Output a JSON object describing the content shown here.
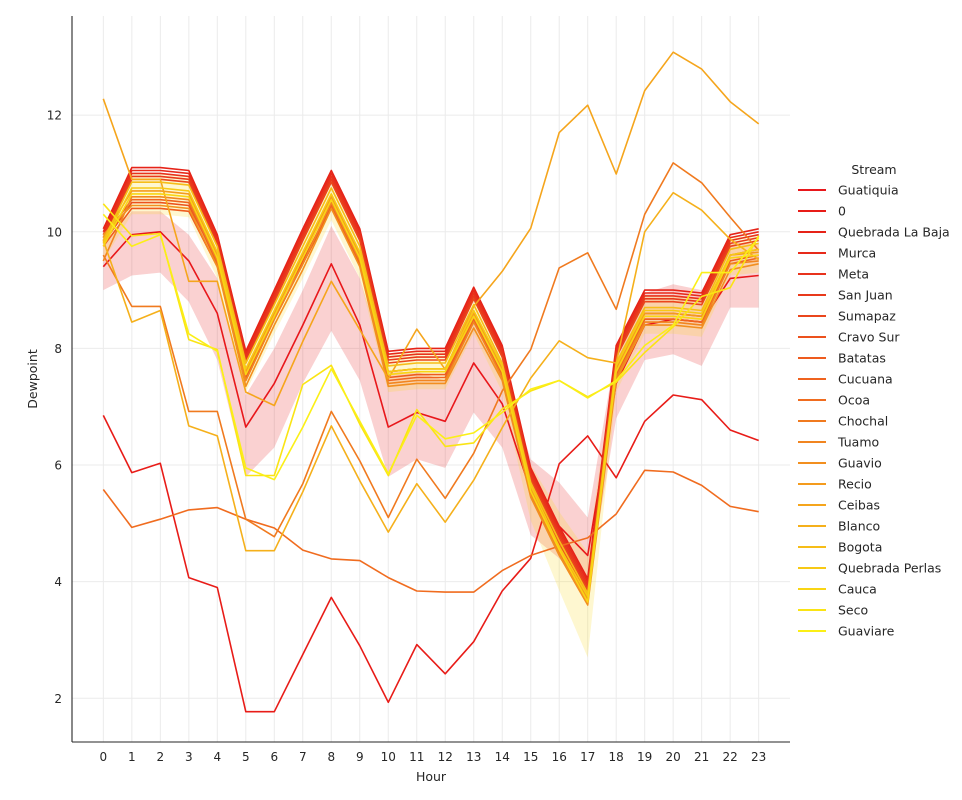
{
  "chart_data": {
    "type": "line",
    "xlabel": "Hour",
    "ylabel": "Dewpoint",
    "x": [
      0,
      1,
      2,
      3,
      4,
      5,
      6,
      7,
      8,
      9,
      10,
      11,
      12,
      13,
      14,
      15,
      16,
      17,
      18,
      19,
      20,
      21,
      22,
      23
    ],
    "x_ticks": [
      "0",
      "1",
      "2",
      "3",
      "4",
      "5",
      "6",
      "7",
      "8",
      "9",
      "10",
      "11",
      "12",
      "13",
      "14",
      "15",
      "16",
      "17",
      "18",
      "19",
      "20",
      "21",
      "22",
      "23"
    ],
    "y_ticks": [
      "2",
      "4",
      "6",
      "8",
      "10",
      "12"
    ],
    "xlim": [
      -1.1,
      24.1
    ],
    "ylim": [
      1.25,
      13.7
    ],
    "grid": true,
    "legend": {
      "title": "Stream",
      "placement": "right"
    },
    "series": [
      {
        "name": "Guatiquia",
        "color": "#e8171b",
        "values": [
          9.4,
          9.95,
          10.0,
          9.5,
          8.6,
          6.65,
          7.4,
          8.4,
          9.45,
          8.4,
          6.65,
          6.9,
          6.75,
          7.75,
          7.05,
          5.55,
          4.95,
          4.45,
          7.4,
          8.4,
          8.5,
          8.45,
          9.2,
          9.25
        ],
        "band": [
          [
            9.0,
            9.8
          ],
          [
            9.25,
            10.35
          ],
          [
            9.3,
            10.35
          ],
          [
            8.8,
            9.95
          ],
          [
            7.8,
            9.2
          ],
          [
            5.8,
            7.2
          ],
          [
            6.3,
            8.0
          ],
          [
            7.4,
            9.0
          ],
          [
            8.3,
            10.1
          ],
          [
            7.45,
            9.2
          ],
          [
            5.8,
            7.6
          ],
          [
            6.1,
            7.6
          ],
          [
            5.95,
            7.45
          ],
          [
            6.9,
            8.45
          ],
          [
            6.3,
            7.7
          ],
          [
            4.8,
            6.1
          ],
          [
            4.4,
            5.7
          ],
          [
            3.85,
            5.1
          ],
          [
            6.8,
            8.0
          ],
          [
            7.8,
            8.95
          ],
          [
            7.9,
            9.1
          ],
          [
            7.7,
            9.0
          ],
          [
            8.7,
            9.8
          ],
          [
            8.7,
            9.8
          ]
        ]
      },
      {
        "name": "0",
        "color": "#e81c18",
        "values": [
          6.85,
          5.87,
          6.03,
          4.07,
          3.9,
          1.77,
          1.77,
          2.75,
          3.73,
          2.9,
          1.93,
          2.92,
          2.42,
          2.97,
          3.84,
          4.4,
          6.02,
          6.5,
          5.78,
          6.75,
          7.2,
          7.12,
          6.6,
          6.42
        ]
      },
      {
        "name": "Quebrada La Baja",
        "color": "#e62318",
        "values": [
          10.05,
          11.1,
          11.1,
          11.05,
          9.95,
          7.95,
          9.0,
          10.05,
          11.05,
          10.05,
          7.95,
          8.0,
          8.0,
          9.05,
          8.05,
          5.95,
          4.95,
          4.05,
          8.05,
          9.0,
          9.0,
          8.95,
          9.95,
          10.05
        ]
      },
      {
        "name": "Murca",
        "color": "#e72a1a",
        "values": [
          10.0,
          11.05,
          11.05,
          11.0,
          9.9,
          7.9,
          8.95,
          10.0,
          11.0,
          10.0,
          7.9,
          7.95,
          7.95,
          9.0,
          8.0,
          5.9,
          4.9,
          4.0,
          8.0,
          8.95,
          8.95,
          8.9,
          9.9,
          10.0
        ]
      },
      {
        "name": "Meta",
        "color": "#e8321c",
        "values": [
          9.95,
          11.0,
          11.0,
          10.95,
          9.85,
          7.85,
          8.9,
          9.95,
          10.95,
          9.95,
          7.85,
          7.9,
          7.9,
          8.95,
          7.95,
          5.85,
          4.85,
          3.95,
          7.95,
          8.9,
          8.9,
          8.85,
          9.85,
          9.95
        ]
      },
      {
        "name": "San Juan",
        "color": "#e8391b",
        "values": [
          9.9,
          10.95,
          10.95,
          10.9,
          9.8,
          7.8,
          8.85,
          9.9,
          10.9,
          9.9,
          7.8,
          7.85,
          7.85,
          8.9,
          7.9,
          5.8,
          4.8,
          3.9,
          7.9,
          8.85,
          8.85,
          8.8,
          9.8,
          9.9
        ]
      },
      {
        "name": "Sumapaz",
        "color": "#ea461c",
        "values": [
          9.85,
          10.9,
          10.9,
          10.85,
          9.75,
          7.75,
          8.8,
          9.85,
          10.85,
          9.85,
          7.75,
          7.8,
          7.8,
          8.85,
          7.85,
          5.75,
          4.75,
          3.85,
          7.85,
          8.8,
          8.8,
          8.75,
          9.75,
          9.85
        ]
      },
      {
        "name": "Cravo Sur",
        "color": "#ec511d",
        "values": [
          9.8,
          10.5,
          10.5,
          10.45,
          9.5,
          7.6,
          8.6,
          9.5,
          10.45,
          9.5,
          7.6,
          7.65,
          7.65,
          8.6,
          7.7,
          5.65,
          4.65,
          3.8,
          7.7,
          8.6,
          8.6,
          8.55,
          9.6,
          9.7
        ]
      },
      {
        "name": "Batatas",
        "color": "#ee5b1e",
        "values": [
          9.75,
          10.4,
          10.4,
          10.35,
          9.4,
          7.5,
          8.5,
          9.45,
          10.4,
          9.45,
          7.5,
          7.55,
          7.55,
          8.5,
          7.6,
          5.6,
          4.6,
          3.75,
          7.6,
          8.5,
          8.5,
          8.45,
          9.5,
          9.6
        ]
      },
      {
        "name": "Cucuana",
        "color": "#ef631f",
        "values": [
          9.9,
          10.55,
          10.55,
          10.5,
          9.45,
          7.45,
          8.5,
          9.45,
          10.45,
          9.45,
          7.45,
          7.5,
          7.5,
          8.5,
          7.55,
          5.55,
          4.55,
          3.7,
          7.55,
          8.5,
          8.5,
          8.45,
          9.45,
          9.55
        ]
      },
      {
        "name": "Ocoa",
        "color": "#f06c1f",
        "values": [
          5.58,
          4.93,
          5.07,
          5.23,
          5.27,
          5.07,
          4.92,
          4.54,
          4.39,
          4.36,
          4.07,
          3.84,
          3.82,
          3.82,
          4.19,
          4.45,
          4.61,
          4.75,
          5.16,
          5.91,
          5.88,
          5.65,
          5.29,
          5.2
        ]
      },
      {
        "name": "Chochal",
        "color": "#f07a1f",
        "values": [
          9.6,
          8.72,
          8.72,
          6.92,
          6.92,
          5.07,
          4.77,
          5.68,
          6.92,
          6.07,
          5.1,
          6.1,
          5.43,
          6.2,
          7.27,
          7.98,
          9.38,
          9.64,
          8.67,
          10.3,
          11.18,
          10.84,
          10.25,
          9.68
        ]
      },
      {
        "name": "Tuamo",
        "color": "#f18520",
        "values": [
          9.5,
          10.6,
          10.6,
          10.55,
          9.5,
          7.45,
          8.5,
          9.45,
          10.5,
          9.5,
          7.4,
          7.45,
          7.45,
          8.45,
          7.5,
          5.5,
          4.5,
          3.65,
          7.5,
          8.45,
          8.45,
          8.4,
          9.45,
          9.5
        ]
      },
      {
        "name": "Guavio",
        "color": "#f28f1f",
        "values": [
          9.95,
          10.45,
          10.45,
          10.4,
          9.4,
          7.35,
          8.4,
          9.35,
          10.4,
          9.4,
          7.35,
          7.4,
          7.4,
          8.35,
          7.45,
          5.45,
          4.45,
          3.6,
          7.45,
          8.4,
          8.4,
          8.35,
          9.35,
          9.45
        ]
      },
      {
        "name": "Recio",
        "color": "#f49b1d",
        "values": [
          9.9,
          10.7,
          10.7,
          10.65,
          9.6,
          7.6,
          8.6,
          9.6,
          10.6,
          9.6,
          7.6,
          7.65,
          7.65,
          8.6,
          7.65,
          5.6,
          4.6,
          3.7,
          7.65,
          8.6,
          8.6,
          8.55,
          9.6,
          9.65
        ]
      },
      {
        "name": "Ceibas",
        "color": "#f5a51c",
        "values": [
          12.28,
          10.9,
          10.9,
          9.15,
          9.15,
          7.25,
          7.02,
          8.12,
          9.15,
          8.32,
          7.48,
          8.33,
          7.64,
          8.72,
          9.32,
          10.06,
          11.7,
          12.17,
          10.99,
          12.42,
          13.08,
          12.79,
          12.23,
          11.85
        ]
      },
      {
        "name": "Blanco",
        "color": "#f5b01b",
        "values": [
          9.85,
          8.45,
          8.65,
          6.67,
          6.5,
          4.53,
          4.53,
          5.54,
          6.67,
          5.73,
          4.85,
          5.68,
          5.02,
          5.74,
          6.64,
          7.49,
          8.13,
          7.84,
          7.75,
          10.0,
          10.67,
          10.37,
          9.87,
          9.52
        ]
      },
      {
        "name": "Bogota",
        "color": "#f6bd18",
        "values": [
          9.85,
          10.85,
          10.85,
          10.8,
          9.75,
          7.75,
          8.75,
          9.75,
          10.75,
          9.75,
          7.7,
          7.75,
          7.75,
          8.75,
          7.75,
          5.7,
          4.7,
          3.8,
          7.75,
          8.7,
          8.7,
          8.65,
          9.7,
          9.8
        ]
      },
      {
        "name": "Quebrada Perlas",
        "color": "#f7c915",
        "values": [
          9.8,
          10.75,
          10.75,
          10.7,
          9.65,
          7.65,
          8.65,
          9.65,
          10.65,
          9.65,
          7.6,
          7.65,
          7.65,
          8.65,
          7.7,
          5.65,
          4.6,
          3.75,
          7.7,
          8.65,
          8.65,
          8.6,
          9.6,
          9.7
        ]
      },
      {
        "name": "Cauca",
        "color": "#f9d514",
        "values": [
          9.75,
          10.65,
          10.65,
          10.6,
          9.55,
          7.55,
          8.55,
          9.55,
          10.55,
          9.55,
          7.55,
          7.6,
          7.6,
          8.55,
          7.6,
          5.55,
          4.55,
          3.65,
          7.6,
          8.55,
          8.55,
          8.5,
          9.55,
          9.6
        ],
        "band": [
          [
            9.5,
            10.05
          ],
          [
            10.3,
            11.0
          ],
          [
            10.3,
            11.0
          ],
          [
            10.25,
            10.95
          ],
          [
            9.2,
            9.9
          ],
          [
            7.25,
            7.9
          ],
          [
            8.25,
            8.9
          ],
          [
            9.2,
            9.9
          ],
          [
            10.2,
            10.9
          ],
          [
            9.2,
            9.9
          ],
          [
            7.25,
            7.9
          ],
          [
            7.3,
            7.95
          ],
          [
            7.3,
            7.95
          ],
          [
            8.25,
            8.9
          ],
          [
            7.25,
            7.95
          ],
          [
            5.05,
            6.0
          ],
          [
            3.85,
            5.2
          ],
          [
            2.7,
            4.5
          ],
          [
            7.25,
            7.95
          ],
          [
            8.25,
            8.9
          ],
          [
            8.25,
            8.9
          ],
          [
            8.2,
            8.85
          ],
          [
            9.25,
            9.9
          ],
          [
            9.3,
            9.95
          ]
        ]
      },
      {
        "name": "Seco",
        "color": "#fae414",
        "values": [
          10.48,
          9.93,
          9.97,
          8.15,
          7.98,
          5.82,
          5.82,
          7.38,
          7.71,
          6.7,
          5.82,
          6.95,
          6.32,
          6.38,
          6.96,
          7.27,
          7.45,
          7.17,
          7.42,
          7.93,
          8.37,
          8.89,
          9.04,
          9.93
        ]
      },
      {
        "name": "Guaviare",
        "color": "#fbef17",
        "values": [
          10.3,
          9.75,
          9.95,
          8.25,
          7.95,
          5.95,
          5.75,
          6.65,
          7.65,
          6.75,
          5.85,
          6.85,
          6.45,
          6.55,
          6.9,
          7.3,
          7.45,
          7.15,
          7.45,
          8.05,
          8.4,
          9.3,
          9.3,
          9.9
        ]
      }
    ]
  }
}
